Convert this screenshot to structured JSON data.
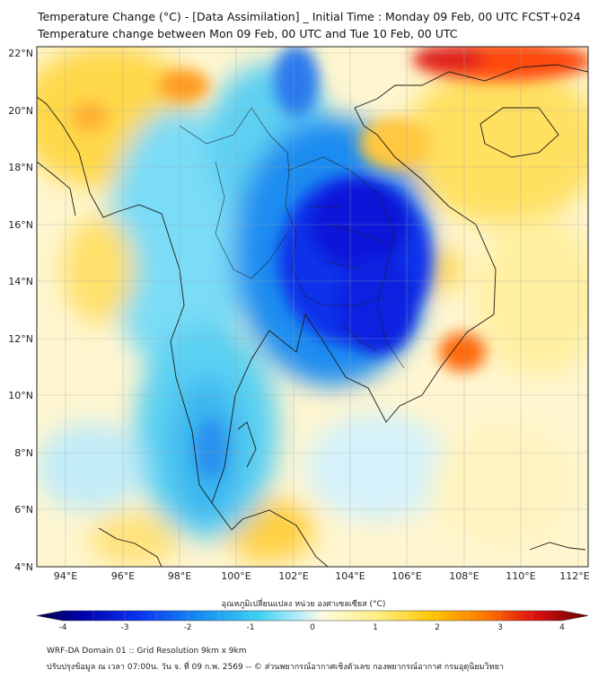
{
  "title_line1": "Temperature Change (°C) - [Data Assimilation] _ Initial Time : Monday 09 Feb, 00 UTC FCST+024",
  "title_line2": "Temperature change between Mon 09 Feb, 00 UTC and Tue 10 Feb, 00 UTC",
  "lat_labels": [
    "22°N",
    "20°N",
    "18°N",
    "16°N",
    "14°N",
    "12°N",
    "10°N",
    "8°N",
    "6°N",
    "4°N"
  ],
  "lon_labels": [
    "94°E",
    "96°E",
    "98°E",
    "100°E",
    "102°E",
    "104°E",
    "106°E",
    "108°E",
    "110°E",
    "112°E"
  ],
  "colorbar": {
    "title": "อุณหภูมิเปลี่ยนแปลง หน่วย องศาเซลเซียส (°C)",
    "min": -4,
    "max": 4,
    "tick_labels": [
      "-4",
      "-3",
      "-2",
      "-1",
      "0",
      "1",
      "2",
      "3",
      "4"
    ]
  },
  "footer_line1": "WRF-DA Domain 01 :: Grid Resolution 9km x 9km",
  "footer_line2": "ปรับปรุงข้อมูล ณ เวลา 07:00น. วัน จ. ที่ 09 ก.พ. 2569 -- © ส่วนพยากรณ์อากาศเชิงตัวเลข กองพยากรณ์อากาศ กรมอุตุนิยมวิทยา",
  "colors": {
    "warm": "#ffd84a",
    "hot": "#e0201a",
    "cool": "#27c8f0",
    "cold": "#0a18d8",
    "neutral": "#e6f6fc"
  }
}
